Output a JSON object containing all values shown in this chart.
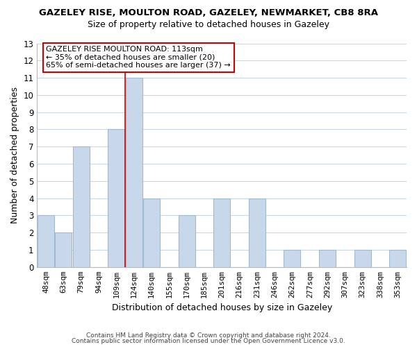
{
  "title": "GAZELEY RISE, MOULTON ROAD, GAZELEY, NEWMARKET, CB8 8RA",
  "subtitle": "Size of property relative to detached houses in Gazeley",
  "xlabel": "Distribution of detached houses by size in Gazeley",
  "ylabel": "Number of detached properties",
  "categories": [
    "48sqm",
    "63sqm",
    "79sqm",
    "94sqm",
    "109sqm",
    "124sqm",
    "140sqm",
    "155sqm",
    "170sqm",
    "185sqm",
    "201sqm",
    "216sqm",
    "231sqm",
    "246sqm",
    "262sqm",
    "277sqm",
    "292sqm",
    "307sqm",
    "323sqm",
    "338sqm",
    "353sqm"
  ],
  "values": [
    3,
    2,
    7,
    0,
    8,
    11,
    4,
    0,
    3,
    0,
    4,
    0,
    4,
    0,
    1,
    0,
    1,
    0,
    1,
    0,
    1
  ],
  "bar_color": "#c8d8ea",
  "bar_edge_color": "#a0b8d0",
  "highlight_line_color": "#cc0000",
  "highlight_line_index": 4.5,
  "ylim": [
    0,
    13
  ],
  "yticks": [
    0,
    1,
    2,
    3,
    4,
    5,
    6,
    7,
    8,
    9,
    10,
    11,
    12,
    13
  ],
  "annotation_title": "GAZELEY RISE MOULTON ROAD: 113sqm",
  "annotation_line1": "← 35% of detached houses are smaller (20)",
  "annotation_line2": "65% of semi-detached houses are larger (37) →",
  "annotation_box_color": "#ffffff",
  "annotation_box_edge": "#cc0000",
  "footer1": "Contains HM Land Registry data © Crown copyright and database right 2024.",
  "footer2": "Contains public sector information licensed under the Open Government Licence v3.0.",
  "background_color": "#ffffff",
  "grid_color": "#c8d8e8"
}
